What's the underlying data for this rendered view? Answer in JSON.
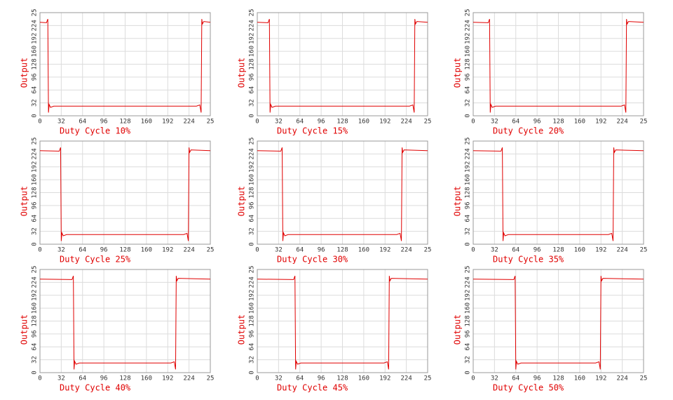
{
  "chart_data": [
    {
      "type": "line",
      "xlabel": "Duty Cycle 10%",
      "ylabel": "Output",
      "color": "#e00000",
      "x": [
        0,
        9.8,
        11.8,
        12.8,
        13.8,
        15.8,
        20.8,
        235.2,
        240.2,
        242.2,
        243.2,
        244.2,
        246.2,
        256
      ],
      "values": [
        232,
        231,
        240,
        8,
        28,
        21,
        24,
        24,
        27,
        8,
        240,
        228,
        234,
        232
      ],
      "xlim": [
        0,
        256
      ],
      "ylim": [
        0,
        256
      ],
      "xticks": [
        0,
        32,
        64,
        96,
        128,
        160,
        192,
        224,
        {
          "value": 256,
          "label": "25"
        }
      ],
      "yticks": [
        0,
        32,
        64,
        96,
        128,
        160,
        192,
        224,
        {
          "value": 256,
          "label": "25"
        }
      ],
      "grid": true
    },
    {
      "type": "line",
      "xlabel": "Duty Cycle 15%",
      "ylabel": "Output",
      "color": "#e00000",
      "x": [
        0,
        16.2,
        18.2,
        19.2,
        20.2,
        22.2,
        27.2,
        228.8,
        233.8,
        235.8,
        236.8,
        237.8,
        239.8,
        256
      ],
      "values": [
        232,
        231,
        240,
        8,
        28,
        21,
        24,
        24,
        27,
        8,
        240,
        228,
        234,
        232
      ],
      "xlim": [
        0,
        256
      ],
      "ylim": [
        0,
        256
      ],
      "xticks": [
        0,
        32,
        64,
        96,
        128,
        160,
        192,
        224,
        {
          "value": 256,
          "label": "25"
        }
      ],
      "yticks": [
        0,
        32,
        64,
        96,
        128,
        160,
        192,
        224,
        {
          "value": 256,
          "label": "25"
        }
      ],
      "grid": true
    },
    {
      "type": "line",
      "xlabel": "Duty Cycle 20%",
      "ylabel": "Output",
      "color": "#e00000",
      "x": [
        0,
        22.6,
        24.6,
        25.6,
        26.6,
        28.6,
        33.6,
        222.4,
        227.4,
        229.4,
        230.4,
        231.4,
        233.4,
        256
      ],
      "values": [
        232,
        231,
        240,
        8,
        28,
        21,
        24,
        24,
        27,
        8,
        240,
        228,
        234,
        232
      ],
      "xlim": [
        0,
        256
      ],
      "ylim": [
        0,
        256
      ],
      "xticks": [
        0,
        32,
        64,
        96,
        128,
        160,
        192,
        224,
        {
          "value": 256,
          "label": "25"
        }
      ],
      "yticks": [
        0,
        32,
        64,
        96,
        128,
        160,
        192,
        224,
        {
          "value": 256,
          "label": "25"
        }
      ],
      "grid": true
    },
    {
      "type": "line",
      "xlabel": "Duty Cycle 25%",
      "ylabel": "Output",
      "color": "#e00000",
      "x": [
        0,
        29,
        31,
        32,
        33,
        35,
        40,
        216,
        221,
        223,
        224,
        225,
        227,
        256
      ],
      "values": [
        232,
        231,
        240,
        8,
        28,
        21,
        24,
        24,
        27,
        8,
        240,
        228,
        234,
        232
      ],
      "xlim": [
        0,
        256
      ],
      "ylim": [
        0,
        256
      ],
      "xticks": [
        0,
        32,
        64,
        96,
        128,
        160,
        192,
        224,
        {
          "value": 256,
          "label": "25"
        }
      ],
      "yticks": [
        0,
        32,
        64,
        96,
        128,
        160,
        192,
        224,
        {
          "value": 256,
          "label": "25"
        }
      ],
      "grid": true
    },
    {
      "type": "line",
      "xlabel": "Duty Cycle 30%",
      "ylabel": "Output",
      "color": "#e00000",
      "x": [
        0,
        35.4,
        37.4,
        38.4,
        39.4,
        41.4,
        46.4,
        209.6,
        214.6,
        216.6,
        217.6,
        218.6,
        220.6,
        256
      ],
      "values": [
        232,
        231,
        240,
        8,
        28,
        21,
        24,
        24,
        27,
        8,
        240,
        228,
        234,
        232
      ],
      "xlim": [
        0,
        256
      ],
      "ylim": [
        0,
        256
      ],
      "xticks": [
        0,
        32,
        64,
        96,
        128,
        160,
        192,
        224,
        {
          "value": 256,
          "label": "25"
        }
      ],
      "yticks": [
        0,
        32,
        64,
        96,
        128,
        160,
        192,
        224,
        {
          "value": 256,
          "label": "25"
        }
      ],
      "grid": true
    },
    {
      "type": "line",
      "xlabel": "Duty Cycle 35%",
      "ylabel": "Output",
      "color": "#e00000",
      "x": [
        0,
        41.8,
        43.8,
        44.8,
        45.8,
        47.8,
        52.8,
        203.2,
        208.2,
        210.2,
        211.2,
        212.2,
        214.2,
        256
      ],
      "values": [
        232,
        231,
        240,
        8,
        28,
        21,
        24,
        24,
        27,
        8,
        240,
        228,
        234,
        232
      ],
      "xlim": [
        0,
        256
      ],
      "ylim": [
        0,
        256
      ],
      "xticks": [
        0,
        32,
        64,
        96,
        128,
        160,
        192,
        224,
        {
          "value": 256,
          "label": "25"
        }
      ],
      "yticks": [
        0,
        32,
        64,
        96,
        128,
        160,
        192,
        224,
        {
          "value": 256,
          "label": "25"
        }
      ],
      "grid": true
    },
    {
      "type": "line",
      "xlabel": "Duty Cycle 40%",
      "ylabel": "Output",
      "color": "#e00000",
      "x": [
        0,
        48.2,
        50.2,
        51.2,
        52.2,
        54.2,
        59.2,
        196.8,
        201.8,
        203.8,
        204.8,
        205.8,
        207.8,
        256
      ],
      "values": [
        232,
        231,
        240,
        8,
        28,
        21,
        24,
        24,
        27,
        8,
        240,
        228,
        234,
        232
      ],
      "xlim": [
        0,
        256
      ],
      "ylim": [
        0,
        256
      ],
      "xticks": [
        0,
        32,
        64,
        96,
        128,
        160,
        192,
        224,
        {
          "value": 256,
          "label": "25"
        }
      ],
      "yticks": [
        0,
        32,
        64,
        96,
        128,
        160,
        192,
        224,
        {
          "value": 256,
          "label": "25"
        }
      ],
      "grid": true
    },
    {
      "type": "line",
      "xlabel": "Duty Cycle 45%",
      "ylabel": "Output",
      "color": "#e00000",
      "x": [
        0,
        54.6,
        56.6,
        57.6,
        58.6,
        60.6,
        65.6,
        190.4,
        195.4,
        197.4,
        198.4,
        199.4,
        201.4,
        256
      ],
      "values": [
        232,
        231,
        240,
        8,
        28,
        21,
        24,
        24,
        27,
        8,
        240,
        228,
        234,
        232
      ],
      "xlim": [
        0,
        256
      ],
      "ylim": [
        0,
        256
      ],
      "xticks": [
        0,
        32,
        64,
        96,
        128,
        160,
        192,
        224,
        {
          "value": 256,
          "label": "25"
        }
      ],
      "yticks": [
        0,
        32,
        64,
        96,
        128,
        160,
        192,
        224,
        {
          "value": 256,
          "label": "25"
        }
      ],
      "grid": true
    },
    {
      "type": "line",
      "xlabel": "Duty Cycle 50%",
      "ylabel": "Output",
      "color": "#e00000",
      "x": [
        0,
        61,
        63,
        64,
        65,
        67,
        72,
        184,
        189,
        191,
        192,
        193,
        195,
        256
      ],
      "values": [
        232,
        231,
        240,
        8,
        28,
        21,
        24,
        24,
        27,
        8,
        240,
        228,
        234,
        232
      ],
      "xlim": [
        0,
        256
      ],
      "ylim": [
        0,
        256
      ],
      "xticks": [
        0,
        32,
        64,
        96,
        128,
        160,
        192,
        224,
        {
          "value": 256,
          "label": "25"
        }
      ],
      "yticks": [
        0,
        32,
        64,
        96,
        128,
        160,
        192,
        224,
        {
          "value": 256,
          "label": "25"
        }
      ],
      "grid": true
    }
  ]
}
